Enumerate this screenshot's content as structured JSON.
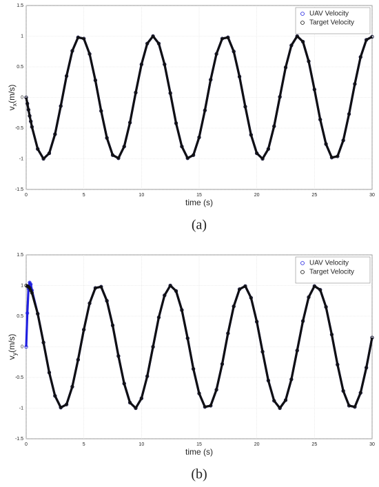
{
  "chart_data": [
    {
      "type": "line",
      "panel_label": "(a)",
      "xlabel": "time (s)",
      "ylabel_main": "v",
      "ylabel_subscript": "x",
      "ylabel_unit": "(m/s)",
      "x": [
        0,
        0.1,
        0.2,
        0.3,
        0.4,
        0.5,
        1,
        1.5,
        2,
        2.5,
        3,
        3.5,
        4,
        4.5,
        5,
        5.5,
        6,
        6.5,
        7,
        7.5,
        8,
        8.5,
        9,
        9.5,
        10,
        10.5,
        11,
        11.5,
        12,
        12.5,
        13,
        13.5,
        14,
        14.5,
        15,
        15.5,
        16,
        16.5,
        17,
        17.5,
        18,
        18.5,
        19,
        19.5,
        20,
        20.5,
        21,
        21.5,
        22,
        22.5,
        23,
        23.5,
        24,
        24.5,
        25,
        25.5,
        26,
        26.5,
        27,
        27.5,
        28,
        28.5,
        29,
        29.5,
        30
      ],
      "series": [
        {
          "name": "UAV Velocity",
          "color": "#2020e0",
          "values": [
            0,
            -0.1,
            -0.2,
            -0.3,
            -0.39,
            -0.48,
            -0.84,
            -1,
            -0.91,
            -0.6,
            -0.14,
            0.35,
            0.76,
            0.98,
            0.96,
            0.71,
            0.28,
            -0.22,
            -0.66,
            -0.94,
            -0.99,
            -0.8,
            -0.41,
            0.08,
            0.54,
            0.88,
            1,
            0.88,
            0.54,
            0.07,
            -0.42,
            -0.8,
            -0.99,
            -0.94,
            -0.65,
            -0.21,
            0.29,
            0.71,
            0.96,
            0.98,
            0.75,
            0.34,
            -0.15,
            -0.61,
            -0.91,
            -1,
            -0.84,
            -0.47,
            0.01,
            0.49,
            0.85,
            1,
            0.91,
            0.59,
            0.13,
            -0.36,
            -0.76,
            -0.98,
            -0.96,
            -0.7,
            -0.27,
            0.22,
            0.66,
            0.94,
            0.99
          ]
        },
        {
          "name": "Target Velocity",
          "color": "#111111",
          "values": [
            0,
            -0.1,
            -0.2,
            -0.3,
            -0.39,
            -0.48,
            -0.84,
            -1,
            -0.91,
            -0.6,
            -0.14,
            0.35,
            0.76,
            0.98,
            0.96,
            0.71,
            0.28,
            -0.22,
            -0.66,
            -0.94,
            -0.99,
            -0.8,
            -0.41,
            0.08,
            0.54,
            0.88,
            1,
            0.88,
            0.54,
            0.07,
            -0.42,
            -0.8,
            -0.99,
            -0.94,
            -0.65,
            -0.21,
            0.29,
            0.71,
            0.96,
            0.98,
            0.75,
            0.34,
            -0.15,
            -0.61,
            -0.91,
            -1,
            -0.84,
            -0.47,
            0.01,
            0.49,
            0.85,
            1,
            0.91,
            0.59,
            0.13,
            -0.36,
            -0.76,
            -0.98,
            -0.96,
            -0.7,
            -0.27,
            0.22,
            0.66,
            0.94,
            0.99
          ]
        }
      ],
      "xlim": [
        0,
        30
      ],
      "xticks": [
        0,
        5,
        10,
        15,
        20,
        25,
        30
      ],
      "ylim": [
        -1.5,
        1.5
      ],
      "yticks": [
        -1.5,
        -1,
        -0.5,
        0,
        0.5,
        1,
        1.5
      ],
      "grid": true,
      "legend": "northeast"
    },
    {
      "type": "line",
      "panel_label": "(b)",
      "xlabel": "time (s)",
      "ylabel_main": "v",
      "ylabel_subscript": "y",
      "ylabel_unit": "(m/s)",
      "x": [
        0,
        0.1,
        0.2,
        0.3,
        0.4,
        0.5,
        1,
        1.5,
        2,
        2.5,
        3,
        3.5,
        4,
        4.5,
        5,
        5.5,
        6,
        6.5,
        7,
        7.5,
        8,
        8.5,
        9,
        9.5,
        10,
        10.5,
        11,
        11.5,
        12,
        12.5,
        13,
        13.5,
        14,
        14.5,
        15,
        15.5,
        16,
        16.5,
        17,
        17.5,
        18,
        18.5,
        19,
        19.5,
        20,
        20.5,
        21,
        21.5,
        22,
        22.5,
        23,
        23.5,
        24,
        24.5,
        25,
        25.5,
        26,
        26.5,
        27,
        27.5,
        28,
        28.5,
        29,
        29.5,
        30
      ],
      "series": [
        {
          "name": "UAV Velocity",
          "color": "#2020e0",
          "values": [
            0,
            0.55,
            0.95,
            1.05,
            1.02,
            0.92,
            0.54,
            0.07,
            -0.42,
            -0.8,
            -0.99,
            -0.94,
            -0.65,
            -0.21,
            0.28,
            0.71,
            0.96,
            0.98,
            0.75,
            0.35,
            -0.15,
            -0.6,
            -0.91,
            -1,
            -0.84,
            -0.48,
            0,
            0.48,
            0.84,
            1,
            0.91,
            0.6,
            0.14,
            -0.36,
            -0.76,
            -0.98,
            -0.96,
            -0.7,
            -0.28,
            0.22,
            0.66,
            0.94,
            0.99,
            0.8,
            0.41,
            -0.08,
            -0.55,
            -0.88,
            -1,
            -0.87,
            -0.53,
            -0.06,
            0.42,
            0.81,
            0.99,
            0.93,
            0.65,
            0.2,
            -0.29,
            -0.72,
            -0.96,
            -0.98,
            -0.75,
            -0.34,
            0.15
          ]
        },
        {
          "name": "Target Velocity",
          "color": "#111111",
          "values": [
            1,
            0.99,
            0.98,
            0.96,
            0.92,
            0.88,
            0.54,
            0.07,
            -0.42,
            -0.8,
            -0.99,
            -0.94,
            -0.65,
            -0.21,
            0.28,
            0.71,
            0.96,
            0.98,
            0.75,
            0.35,
            -0.15,
            -0.6,
            -0.91,
            -1,
            -0.84,
            -0.48,
            0,
            0.48,
            0.84,
            1,
            0.91,
            0.6,
            0.14,
            -0.36,
            -0.76,
            -0.98,
            -0.96,
            -0.7,
            -0.28,
            0.22,
            0.66,
            0.94,
            0.99,
            0.8,
            0.41,
            -0.08,
            -0.55,
            -0.88,
            -1,
            -0.87,
            -0.53,
            -0.06,
            0.42,
            0.81,
            0.99,
            0.93,
            0.65,
            0.2,
            -0.29,
            -0.72,
            -0.96,
            -0.98,
            -0.75,
            -0.34,
            0.15
          ]
        }
      ],
      "xlim": [
        0,
        30
      ],
      "xticks": [
        0,
        5,
        10,
        15,
        20,
        25,
        30
      ],
      "ylim": [
        -1.5,
        1.5
      ],
      "yticks": [
        -1.5,
        -1,
        -0.5,
        0,
        0.5,
        1,
        1.5
      ],
      "grid": true,
      "legend": "northeast"
    }
  ]
}
